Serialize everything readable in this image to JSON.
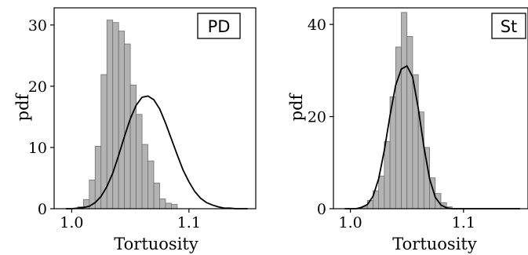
{
  "chart_data": [
    {
      "type": "bar",
      "label": "PD",
      "xlabel": "Tortuosity",
      "ylabel": "pdf",
      "xlim": [
        0.985,
        1.157
      ],
      "ylim": [
        0,
        32.8
      ],
      "xticks": [
        1.0,
        1.1
      ],
      "xtick_labels": [
        "1.0",
        "1.1"
      ],
      "yticks": [
        0,
        10,
        20,
        30
      ],
      "ytick_labels": [
        "0",
        "10",
        "20",
        "30"
      ],
      "grid": false,
      "legend": "none",
      "bin_width": 0.005,
      "histogram": {
        "bin_starts": [
          1.005,
          1.01,
          1.015,
          1.02,
          1.025,
          1.03,
          1.035,
          1.04,
          1.045,
          1.05,
          1.055,
          1.06,
          1.065,
          1.07,
          1.075,
          1.08,
          1.085
        ],
        "values": [
          0.3,
          1.5,
          4.7,
          10.2,
          21.9,
          30.8,
          30.4,
          29.0,
          26.9,
          20.2,
          15.4,
          10.5,
          7.8,
          4.2,
          1.6,
          0.9,
          0.7
        ]
      },
      "curve": {
        "x": [
          0.995,
          1.0,
          1.005,
          1.01,
          1.015,
          1.02,
          1.025,
          1.03,
          1.035,
          1.04,
          1.045,
          1.05,
          1.055,
          1.06,
          1.065,
          1.07,
          1.075,
          1.08,
          1.085,
          1.09,
          1.095,
          1.1,
          1.105,
          1.11,
          1.115,
          1.12,
          1.125,
          1.13,
          1.135,
          1.14,
          1.145,
          1.15
        ],
        "y": [
          0.0,
          0.0,
          0.1,
          0.2,
          0.4,
          1.0,
          2.0,
          3.6,
          5.8,
          8.7,
          11.8,
          14.7,
          16.9,
          18.2,
          18.4,
          17.8,
          16.3,
          14.0,
          11.4,
          8.8,
          6.3,
          4.4,
          2.8,
          1.7,
          1.0,
          0.6,
          0.3,
          0.1,
          0.1,
          0.0,
          0.0,
          0.0
        ]
      },
      "colors": {
        "bar_fill": "#b3b3b3",
        "bar_edge": "#6f6f6f",
        "curve": "#000000"
      }
    },
    {
      "type": "bar",
      "label": "St",
      "xlabel": "Tortuosity",
      "ylabel": "pdf",
      "xlim": [
        0.985,
        1.157
      ],
      "ylim": [
        0,
        43.6
      ],
      "xticks": [
        1.0,
        1.1
      ],
      "xtick_labels": [
        "1.0",
        "1.1"
      ],
      "yticks": [
        0,
        20,
        40
      ],
      "ytick_labels": [
        "0",
        "20",
        "40"
      ],
      "grid": false,
      "legend": "none",
      "bin_width": 0.005,
      "histogram": {
        "bin_starts": [
          1.01,
          1.015,
          1.02,
          1.025,
          1.03,
          1.035,
          1.04,
          1.045,
          1.05,
          1.055,
          1.06,
          1.065,
          1.07,
          1.075,
          1.08,
          1.085
        ],
        "values": [
          0.5,
          1.8,
          3.9,
          7.1,
          14.6,
          24.3,
          35.1,
          42.6,
          37.4,
          29.1,
          21.0,
          13.3,
          6.7,
          3.3,
          1.3,
          0.4
        ]
      },
      "curve": {
        "x": [
          0.995,
          1.0,
          1.005,
          1.01,
          1.015,
          1.02,
          1.025,
          1.03,
          1.035,
          1.04,
          1.045,
          1.05,
          1.055,
          1.06,
          1.065,
          1.07,
          1.075,
          1.08,
          1.085,
          1.09,
          1.095,
          1.1,
          1.105,
          1.11,
          1.115,
          1.12,
          1.125,
          1.13,
          1.135,
          1.14,
          1.145,
          1.15
        ],
        "y": [
          0.0,
          0.0,
          0.0,
          0.3,
          0.9,
          2.7,
          6.5,
          12.7,
          20.2,
          26.8,
          30.3,
          31.0,
          28.6,
          21.8,
          13.4,
          6.5,
          2.5,
          0.8,
          0.2,
          0.0,
          0.0,
          0.0,
          0.0,
          0.0,
          0.0,
          0.0,
          0.0,
          0.0,
          0.0,
          0.0,
          0.0,
          0.0
        ]
      },
      "colors": {
        "bar_fill": "#b3b3b3",
        "bar_edge": "#6f6f6f",
        "curve": "#000000"
      }
    }
  ]
}
